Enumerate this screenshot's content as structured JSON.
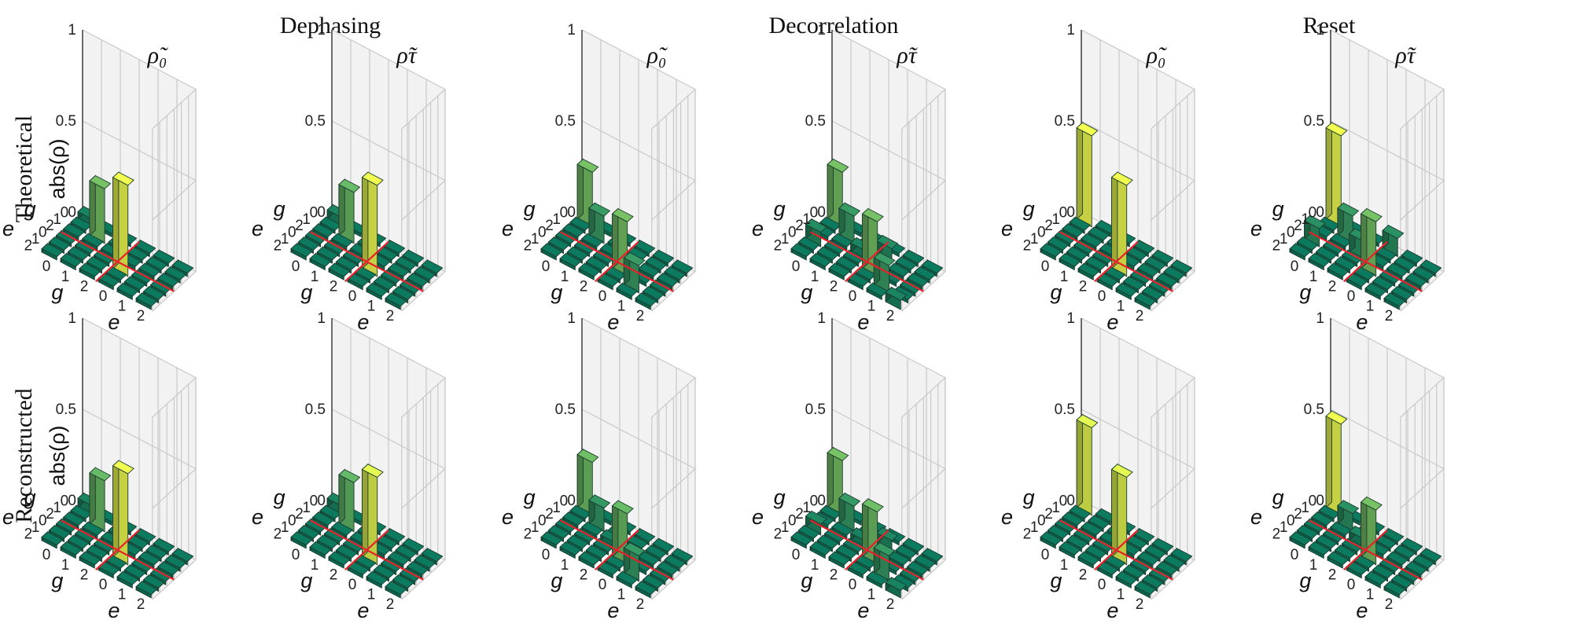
{
  "groups": [
    "Dephasing",
    "Decorrelation",
    "Reset"
  ],
  "panel_titles": [
    "ρ̃₀",
    "ρ̃τ",
    "ρ̃₀",
    "ρ̃τ",
    "ρ̃₀",
    "ρ̃τ"
  ],
  "row_labels": [
    "Theoretical",
    "Reconstructed"
  ],
  "ylabel": "abs(ρ)",
  "colors": {
    "floor": "#0b7a5e",
    "grid": "#c9c9c9",
    "wall": "#f2f2f2",
    "separator": "#e8202a",
    "low": "#0b7a5e",
    "mid": "#57b36a",
    "high": "#f0ff50"
  },
  "chart_data": [
    {
      "type": "bar3d",
      "group": "Dephasing",
      "state": "ρ̃₀",
      "row": "Theoretical",
      "row_ticks": [
        "0",
        "1",
        "2",
        "0",
        "1",
        "2"
      ],
      "row_tick_labels": [
        "g",
        "e"
      ],
      "col_ticks": [
        "0",
        "1",
        "2",
        "0",
        "1",
        "2"
      ],
      "col_tick_labels": [
        "g",
        "e"
      ],
      "zlim": [
        0,
        1
      ],
      "zticks": [
        "0",
        "0.5",
        "1"
      ],
      "values": [
        [
          0.04,
          0,
          0,
          0,
          0,
          0
        ],
        [
          0,
          0.3,
          0,
          0,
          0,
          0
        ],
        [
          0,
          0,
          0,
          0,
          0,
          0
        ],
        [
          0,
          0,
          0,
          0.5,
          0,
          0
        ],
        [
          0,
          0,
          0,
          0,
          0,
          0
        ],
        [
          0,
          0,
          0,
          0,
          0,
          0
        ]
      ]
    },
    {
      "type": "bar3d",
      "group": "Dephasing",
      "state": "ρ̃τ",
      "row": "Theoretical",
      "row_ticks": [
        "0",
        "1",
        "2",
        "0",
        "1",
        "2"
      ],
      "row_tick_labels": [
        "g",
        "e"
      ],
      "col_ticks": [
        "0",
        "1",
        "2",
        "0",
        "1",
        "2"
      ],
      "col_tick_labels": [
        "g",
        "e"
      ],
      "zlim": [
        0,
        1
      ],
      "zticks": [
        "0",
        "0.5",
        "1"
      ],
      "values": [
        [
          0.05,
          0,
          0,
          0,
          0,
          0
        ],
        [
          0,
          0.28,
          0,
          0,
          0,
          0
        ],
        [
          0,
          0,
          0,
          0,
          0,
          0
        ],
        [
          0,
          0,
          0,
          0.5,
          0,
          0
        ],
        [
          0,
          0,
          0,
          0,
          0,
          0
        ],
        [
          0,
          0,
          0,
          0,
          0,
          0
        ]
      ]
    },
    {
      "type": "bar3d",
      "group": "Decorrelation",
      "state": "ρ̃₀",
      "row": "Theoretical",
      "row_ticks": [
        "0",
        "1",
        "2",
        "0",
        "1",
        "2"
      ],
      "row_tick_labels": [
        "g",
        "e"
      ],
      "col_ticks": [
        "0",
        "1",
        "2",
        "0",
        "1",
        "2"
      ],
      "col_tick_labels": [
        "g",
        "e"
      ],
      "zlim": [
        0,
        1
      ],
      "zticks": [
        "0",
        "0.5",
        "1"
      ],
      "values": [
        [
          0.3,
          0,
          0,
          0,
          0,
          0
        ],
        [
          0,
          0.15,
          0,
          0,
          0,
          0
        ],
        [
          0,
          0,
          0,
          0,
          0,
          0
        ],
        [
          0,
          0,
          0,
          0.3,
          0,
          0
        ],
        [
          0,
          0,
          0,
          0,
          0.15,
          0
        ],
        [
          0,
          0,
          0,
          0,
          0,
          0
        ]
      ]
    },
    {
      "type": "bar3d",
      "group": "Decorrelation",
      "state": "ρ̃τ",
      "row": "Theoretical",
      "row_ticks": [
        "0",
        "1",
        "2",
        "0",
        "1",
        "2"
      ],
      "row_tick_labels": [
        "g",
        "e"
      ],
      "col_ticks": [
        "0",
        "1",
        "2",
        "0",
        "1",
        "2"
      ],
      "col_tick_labels": [
        "g",
        "e"
      ],
      "zlim": [
        0,
        1
      ],
      "zticks": [
        "0",
        "0.5",
        "1"
      ],
      "values": [
        [
          0.3,
          0,
          0,
          0,
          0,
          0
        ],
        [
          0,
          0.15,
          0,
          0.08,
          0,
          0
        ],
        [
          0,
          0,
          0.05,
          0,
          0,
          0
        ],
        [
          0.08,
          0,
          0,
          0.3,
          0,
          0
        ],
        [
          0,
          0,
          0,
          0,
          0.15,
          0
        ],
        [
          0,
          0,
          0,
          0,
          0,
          0.05
        ]
      ]
    },
    {
      "type": "bar3d",
      "group": "Reset",
      "state": "ρ̃₀",
      "row": "Theoretical",
      "row_ticks": [
        "0",
        "1",
        "2",
        "0",
        "1",
        "2"
      ],
      "row_tick_labels": [
        "g",
        "e"
      ],
      "col_ticks": [
        "0",
        "1",
        "2",
        "0",
        "1",
        "2"
      ],
      "col_tick_labels": [
        "g",
        "e"
      ],
      "zlim": [
        0,
        1
      ],
      "zticks": [
        "0",
        "0.5",
        "1"
      ],
      "values": [
        [
          0.5,
          0,
          0,
          0,
          0,
          0
        ],
        [
          0,
          0,
          0,
          0,
          0,
          0
        ],
        [
          0,
          0,
          0,
          0,
          0,
          0
        ],
        [
          0,
          0,
          0,
          0.5,
          0,
          0
        ],
        [
          0,
          0,
          0,
          0,
          0,
          0
        ],
        [
          0,
          0,
          0,
          0,
          0,
          0
        ]
      ]
    },
    {
      "type": "bar3d",
      "group": "Reset",
      "state": "ρ̃τ",
      "row": "Theoretical",
      "row_ticks": [
        "0",
        "1",
        "2",
        "0",
        "1",
        "2"
      ],
      "row_tick_labels": [
        "g",
        "e"
      ],
      "col_ticks": [
        "0",
        "1",
        "2",
        "0",
        "1",
        "2"
      ],
      "col_tick_labels": [
        "g",
        "e"
      ],
      "zlim": [
        0,
        1
      ],
      "zticks": [
        "0",
        "0.5",
        "1"
      ],
      "values": [
        [
          0.5,
          0,
          0,
          0.1,
          0,
          0
        ],
        [
          0,
          0.15,
          0,
          0,
          0,
          0
        ],
        [
          0,
          0,
          0.1,
          0,
          0,
          0
        ],
        [
          0.1,
          0,
          0,
          0.3,
          0,
          0
        ],
        [
          0,
          0,
          0,
          0,
          0,
          0
        ],
        [
          0,
          0,
          0,
          0,
          0,
          0
        ]
      ]
    },
    {
      "type": "bar3d",
      "group": "Dephasing",
      "state": "ρ̃₀",
      "row": "Reconstructed",
      "row_ticks": [
        "0",
        "1",
        "2",
        "0",
        "1",
        "2"
      ],
      "row_tick_labels": [
        "g",
        "e"
      ],
      "col_ticks": [
        "0",
        "1",
        "2",
        "0",
        "1",
        "2"
      ],
      "col_tick_labels": [
        "g",
        "e"
      ],
      "zlim": [
        0,
        1
      ],
      "zticks": [
        "0",
        "0.5",
        "1"
      ],
      "values": [
        [
          0.05,
          0,
          0,
          0,
          0,
          0
        ],
        [
          0,
          0.28,
          0,
          0,
          0,
          0
        ],
        [
          0,
          0,
          0,
          0,
          0,
          0
        ],
        [
          0,
          0,
          0,
          0.5,
          0,
          0
        ],
        [
          0,
          0,
          0,
          0,
          0,
          0
        ],
        [
          0,
          0,
          0,
          0,
          0,
          0
        ]
      ]
    },
    {
      "type": "bar3d",
      "group": "Dephasing",
      "state": "ρ̃τ",
      "row": "Reconstructed",
      "row_ticks": [
        "0",
        "1",
        "2",
        "0",
        "1",
        "2"
      ],
      "row_tick_labels": [
        "g",
        "e"
      ],
      "col_ticks": [
        "0",
        "1",
        "2",
        "0",
        "1",
        "2"
      ],
      "col_tick_labels": [
        "g",
        "e"
      ],
      "zlim": [
        0,
        1
      ],
      "zticks": [
        "0",
        "0.5",
        "1"
      ],
      "values": [
        [
          0.05,
          0,
          0,
          0,
          0,
          0
        ],
        [
          0,
          0.27,
          0,
          0,
          0,
          0
        ],
        [
          0,
          0,
          0,
          0,
          0,
          0
        ],
        [
          0,
          0,
          0,
          0.48,
          0,
          0
        ],
        [
          0,
          0,
          0,
          0,
          0,
          0
        ],
        [
          0,
          0,
          0,
          0,
          0,
          0
        ]
      ]
    },
    {
      "type": "bar3d",
      "group": "Decorrelation",
      "state": "ρ̃₀",
      "row": "Reconstructed",
      "row_ticks": [
        "0",
        "1",
        "2",
        "0",
        "1",
        "2"
      ],
      "row_tick_labels": [
        "g",
        "e"
      ],
      "col_ticks": [
        "0",
        "1",
        "2",
        "0",
        "1",
        "2"
      ],
      "col_tick_labels": [
        "g",
        "e"
      ],
      "zlim": [
        0,
        1
      ],
      "zticks": [
        "0",
        "0.5",
        "1"
      ],
      "values": [
        [
          0.29,
          0,
          0,
          0,
          0,
          0
        ],
        [
          0,
          0.13,
          0,
          0,
          0,
          0
        ],
        [
          0,
          0,
          0.03,
          0,
          0,
          0
        ],
        [
          0,
          0,
          0,
          0.28,
          0,
          0
        ],
        [
          0,
          0,
          0,
          0,
          0.14,
          0
        ],
        [
          0,
          0,
          0,
          0,
          0,
          0
        ]
      ]
    },
    {
      "type": "bar3d",
      "group": "Decorrelation",
      "state": "ρ̃τ",
      "row": "Reconstructed",
      "row_ticks": [
        "0",
        "1",
        "2",
        "0",
        "1",
        "2"
      ],
      "row_tick_labels": [
        "g",
        "e"
      ],
      "col_ticks": [
        "0",
        "1",
        "2",
        "0",
        "1",
        "2"
      ],
      "col_tick_labels": [
        "g",
        "e"
      ],
      "zlim": [
        0,
        1
      ],
      "zticks": [
        "0",
        "0.5",
        "1"
      ],
      "values": [
        [
          0.3,
          0,
          0,
          0,
          0,
          0
        ],
        [
          0,
          0.14,
          0,
          0.06,
          0,
          0
        ],
        [
          0,
          0,
          0.04,
          0,
          0,
          0
        ],
        [
          0.06,
          0,
          0,
          0.29,
          0,
          0
        ],
        [
          0,
          0,
          0,
          0,
          0.14,
          0
        ],
        [
          0,
          0,
          0,
          0,
          0,
          0.04
        ]
      ]
    },
    {
      "type": "bar3d",
      "group": "Reset",
      "state": "ρ̃₀",
      "row": "Reconstructed",
      "row_ticks": [
        "0",
        "1",
        "2",
        "0",
        "1",
        "2"
      ],
      "row_tick_labels": [
        "g",
        "e"
      ],
      "col_ticks": [
        "0",
        "1",
        "2",
        "0",
        "1",
        "2"
      ],
      "col_tick_labels": [
        "g",
        "e"
      ],
      "zlim": [
        0,
        1
      ],
      "zticks": [
        "0",
        "0.5",
        "1"
      ],
      "values": [
        [
          0.48,
          0,
          0,
          0,
          0,
          0
        ],
        [
          0,
          0,
          0,
          0,
          0,
          0
        ],
        [
          0,
          0,
          0,
          0,
          0,
          0
        ],
        [
          0,
          0,
          0,
          0.48,
          0,
          0
        ],
        [
          0,
          0,
          0,
          0,
          0,
          0
        ],
        [
          0,
          0,
          0,
          0,
          0,
          0
        ]
      ]
    },
    {
      "type": "bar3d",
      "group": "Reset",
      "state": "ρ̃τ",
      "row": "Reconstructed",
      "row_ticks": [
        "0",
        "1",
        "2",
        "0",
        "1",
        "2"
      ],
      "row_tick_labels": [
        "g",
        "e"
      ],
      "col_ticks": [
        "0",
        "1",
        "2",
        "0",
        "1",
        "2"
      ],
      "col_tick_labels": [
        "g",
        "e"
      ],
      "zlim": [
        0,
        1
      ],
      "zticks": [
        "0",
        "0.5",
        "1"
      ],
      "values": [
        [
          0.5,
          0,
          0,
          0,
          0,
          0
        ],
        [
          0,
          0.1,
          0,
          0,
          0,
          0
        ],
        [
          0,
          0,
          0.05,
          0,
          0,
          0
        ],
        [
          0,
          0,
          0,
          0.3,
          0,
          0
        ],
        [
          0,
          0,
          0,
          0,
          0,
          0
        ],
        [
          0,
          0,
          0,
          0,
          0,
          0
        ]
      ]
    }
  ]
}
